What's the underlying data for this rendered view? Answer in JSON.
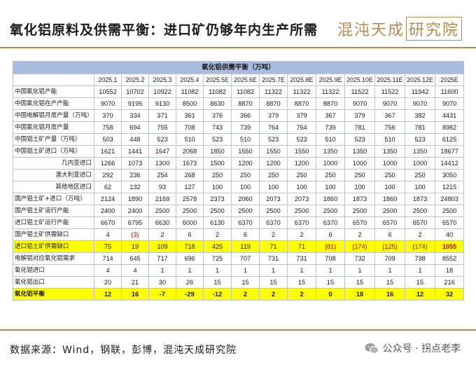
{
  "page_title": "氧化铝原料及供需平衡：进口矿仍够年内生产所需",
  "logo": {
    "main": "混沌天成",
    "box": "研究院"
  },
  "table": {
    "caption": "氧化铝供需平衡（万吨）",
    "columns": [
      "",
      "2025.1",
      "2025.2",
      "2025.3",
      "2025.4",
      "2025.5E",
      "2025.6E",
      "2025.7E",
      "2025.8E",
      "2025.9E",
      "2025.10E",
      "2025.11E",
      "2025.12E",
      "2025E"
    ],
    "rows": [
      {
        "label": "中国氧化铝产能",
        "indent": false,
        "style": "",
        "cells": [
          "10552",
          "10702",
          "10922",
          "11082",
          "11082",
          "11082",
          "11322",
          "11322",
          "11322",
          "11522",
          "11522",
          "11942",
          "11600"
        ]
      },
      {
        "label": "中国氧化铝在产产能",
        "indent": false,
        "style": "",
        "cells": [
          "9070",
          "9195",
          "9130",
          "8500",
          "8630",
          "8870",
          "8870",
          "8870",
          "8870",
          "9070",
          "9070",
          "9070",
          "9070"
        ]
      },
      {
        "label": "中国电解铝月度产量（万吨）",
        "indent": false,
        "style": "",
        "cells": [
          "370",
          "334",
          "371",
          "361",
          "376",
          "366",
          "379",
          "379",
          "367",
          "379",
          "367",
          "382",
          "4431"
        ]
      },
      {
        "label": "中国氧化铝月度产量",
        "indent": false,
        "style": "",
        "cells": [
          "758",
          "694",
          "755",
          "708",
          "743",
          "739",
          "764",
          "764",
          "739",
          "781",
          "756",
          "781",
          "8982"
        ]
      },
      {
        "label": "中国铝土矿产量（万吨）",
        "indent": false,
        "style": "",
        "cells": [
          "503",
          "448",
          "523",
          "510",
          "523",
          "510",
          "523",
          "523",
          "510",
          "523",
          "510",
          "523",
          "6125"
        ]
      },
      {
        "label": "中国铝土矿进口（万吨）",
        "indent": false,
        "style": "",
        "cells": [
          "1621",
          "1441",
          "1647",
          "2068",
          "1850",
          "1550",
          "1550",
          "1550",
          "1350",
          "1350",
          "1350",
          "1350",
          "18677"
        ]
      },
      {
        "label": "几内亚进口",
        "indent": true,
        "style": "",
        "cells": [
          "1266",
          "1073",
          "1300",
          "1673",
          "1500",
          "1200",
          "1200",
          "1200",
          "1000",
          "1000",
          "1000",
          "1000",
          "14412"
        ]
      },
      {
        "label": "澳大利亚进口",
        "indent": true,
        "style": "",
        "cells": [
          "292",
          "236",
          "254",
          "268",
          "250",
          "250",
          "250",
          "250",
          "250",
          "250",
          "250",
          "250",
          "3050"
        ]
      },
      {
        "label": "其他地区进口",
        "indent": true,
        "style": "",
        "cells": [
          "62",
          "132",
          "93",
          "127",
          "100",
          "100",
          "100",
          "100",
          "100",
          "100",
          "100",
          "100",
          "1215"
        ]
      },
      {
        "label": "国产铝土矿+进口（万吨）",
        "indent": false,
        "style": "",
        "cells": [
          "2124",
          "1890",
          "2169",
          "2578",
          "2373",
          "2060",
          "2073",
          "2073",
          "1860",
          "1873",
          "1860",
          "1873",
          "24803"
        ]
      },
      {
        "label": "国产铝土矿运行产能",
        "indent": false,
        "style": "",
        "cells": [
          "2400",
          "2400",
          "2500",
          "2500",
          "2500",
          "2500",
          "2500",
          "2500",
          "2500",
          "2500",
          "2500",
          "2500",
          "2500"
        ]
      },
      {
        "label": "进口铝土矿运行产能",
        "indent": false,
        "style": "",
        "cells": [
          "6670",
          "6795",
          "6630",
          "6000",
          "6130",
          "6370",
          "6370",
          "6370",
          "6370",
          "6570",
          "6570",
          "6570",
          "6570"
        ]
      },
      {
        "label": "国产铝土矿供需缺口",
        "indent": false,
        "style": "",
        "cells": [
          "4",
          "(3)",
          "2",
          "6",
          "2",
          "6",
          "2",
          "2",
          "6",
          "2",
          "6",
          "2",
          "40"
        ]
      },
      {
        "label": "进口铝土矿供需缺口",
        "indent": false,
        "style": "hl",
        "cells": [
          "75",
          "19",
          "109",
          "718",
          "425",
          "119",
          "71",
          "71",
          "(81)",
          "(174)",
          "(125)",
          "(174)",
          "1055"
        ]
      },
      {
        "label": "电解铝对应氧化铝需求",
        "indent": false,
        "style": "",
        "cells": [
          "714",
          "645",
          "717",
          "696",
          "725",
          "707",
          "731",
          "731",
          "708",
          "732",
          "709",
          "738",
          "8552"
        ]
      },
      {
        "label": "氧化铝进口",
        "indent": false,
        "style": "",
        "cells": [
          "4",
          "4",
          "1",
          "1",
          "1",
          "1",
          "1",
          "1",
          "1",
          "1",
          "1",
          "1",
          "18"
        ]
      },
      {
        "label": "氧化铝出口",
        "indent": false,
        "style": "",
        "cells": [
          "20",
          "21",
          "30",
          "26",
          "15",
          "15",
          "15",
          "15",
          "15",
          "15",
          "15",
          "15",
          "216"
        ]
      },
      {
        "label": "氧化铝平衡",
        "indent": false,
        "style": "total",
        "cells": [
          "12",
          "16",
          "-7",
          "-29",
          "-12",
          "2",
          "2",
          "2",
          "0",
          "18",
          "16",
          "12",
          "32"
        ]
      }
    ]
  },
  "source": "数据来源：Wind，钢联，彭博，混沌天成研究院",
  "watermark": {
    "icon": "wechat-icon",
    "text": "公众号 · 拐点老李"
  }
}
